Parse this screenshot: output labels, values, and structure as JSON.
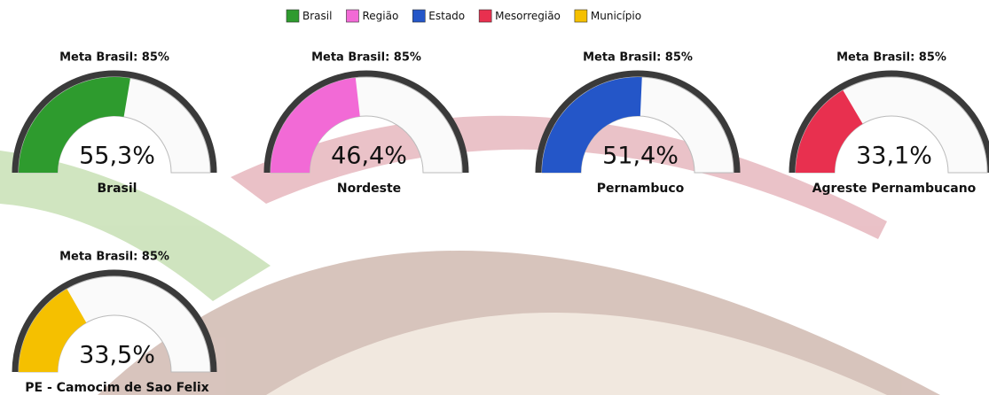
{
  "legend": [
    {
      "name": "Brasil",
      "color": "#2e9b2e"
    },
    {
      "name": "Região",
      "color": "#f26ad6"
    },
    {
      "name": "Estado",
      "color": "#2456c8"
    },
    {
      "name": "Mesorregião",
      "color": "#e8304f"
    },
    {
      "name": "Município",
      "color": "#f5c000"
    }
  ],
  "chart_data": [
    {
      "type": "gauge",
      "title": "Meta Brasil: 85%",
      "label": "Brasil",
      "values": [
        55.3
      ],
      "value_labels": [
        "55,3%"
      ],
      "color": "#2e9b2e",
      "ylim": [
        0,
        100
      ]
    },
    {
      "type": "gauge",
      "title": "Meta Brasil: 85%",
      "label": "Nordeste",
      "values": [
        46.4
      ],
      "value_labels": [
        "46,4%"
      ],
      "color": "#f26ad6",
      "ylim": [
        0,
        100
      ]
    },
    {
      "type": "gauge",
      "title": "Meta Brasil: 85%",
      "label": "Pernambuco",
      "values": [
        51.4
      ],
      "value_labels": [
        "51,4%"
      ],
      "color": "#2456c8",
      "ylim": [
        0,
        100
      ]
    },
    {
      "type": "gauge",
      "title": "Meta Brasil: 85%",
      "label": "Agreste Pernambucano",
      "values": [
        33.1
      ],
      "value_labels": [
        "33,1%"
      ],
      "color": "#e8304f",
      "ylim": [
        0,
        100
      ]
    },
    {
      "type": "gauge",
      "title": "Meta Brasil: 85%",
      "label": "PE - Camocim de Sao Felix",
      "values": [
        33.5
      ],
      "value_labels": [
        "33,5%"
      ],
      "color": "#f5c000",
      "ylim": [
        0,
        100
      ]
    }
  ]
}
